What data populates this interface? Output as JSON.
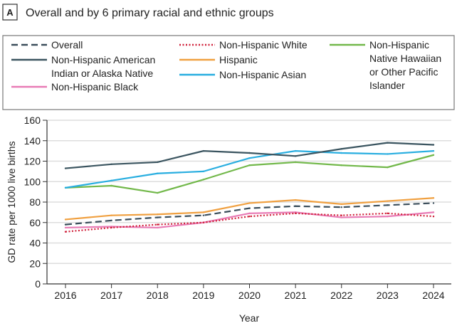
{
  "panel_label": "A",
  "chart_data": {
    "type": "line",
    "title": "Overall and by 6 primary racial and ethnic groups",
    "xlabel": "Year",
    "ylabel": "GD rate per 1000 live births",
    "ylim": [
      0,
      160
    ],
    "yticks": [
      "0",
      "20",
      "40",
      "60",
      "80",
      "100",
      "120",
      "140",
      "160"
    ],
    "grid": true,
    "legend_placement": "top",
    "x": [
      "2016",
      "2017",
      "2018",
      "2019",
      "2020",
      "2021",
      "2022",
      "2023",
      "2024"
    ],
    "series": [
      {
        "name": "Overall",
        "color": "#3a4d5a",
        "style": "dashed",
        "values": [
          58,
          62,
          65,
          67,
          74,
          76,
          75,
          77,
          79
        ]
      },
      {
        "name": "Non-Hispanic American Indian or Alaska Native",
        "label_lines": [
          "Non-Hispanic American",
          "Indian or Alaska Native"
        ],
        "color": "#3b5560",
        "style": "solid",
        "values": [
          113,
          117,
          119,
          130,
          128,
          125,
          132,
          138,
          136
        ]
      },
      {
        "name": "Non-Hispanic Black",
        "color": "#e87bb5",
        "style": "solid",
        "values": [
          55,
          56,
          55,
          60,
          69,
          70,
          65,
          66,
          70
        ]
      },
      {
        "name": "Non-Hispanic White",
        "color": "#d0203a",
        "style": "dotted",
        "values": [
          51,
          55,
          58,
          60,
          66,
          69,
          67,
          69,
          66
        ]
      },
      {
        "name": "Hispanic",
        "color": "#f0a040",
        "style": "solid",
        "values": [
          63,
          67,
          68,
          70,
          79,
          82,
          78,
          81,
          84
        ]
      },
      {
        "name": "Non-Hispanic Asian",
        "color": "#29aee0",
        "style": "solid",
        "values": [
          94,
          101,
          108,
          110,
          123,
          130,
          128,
          127,
          130
        ]
      },
      {
        "name": "Non-Hispanic Native Hawaiian or Other Pacific Islander",
        "label_lines": [
          "Non-Hispanic",
          "Native Hawaiian",
          "or Other Pacific",
          "Islander"
        ],
        "color": "#72b84a",
        "style": "solid",
        "values": [
          94,
          96,
          89,
          102,
          116,
          119,
          116,
          114,
          126
        ]
      }
    ]
  }
}
